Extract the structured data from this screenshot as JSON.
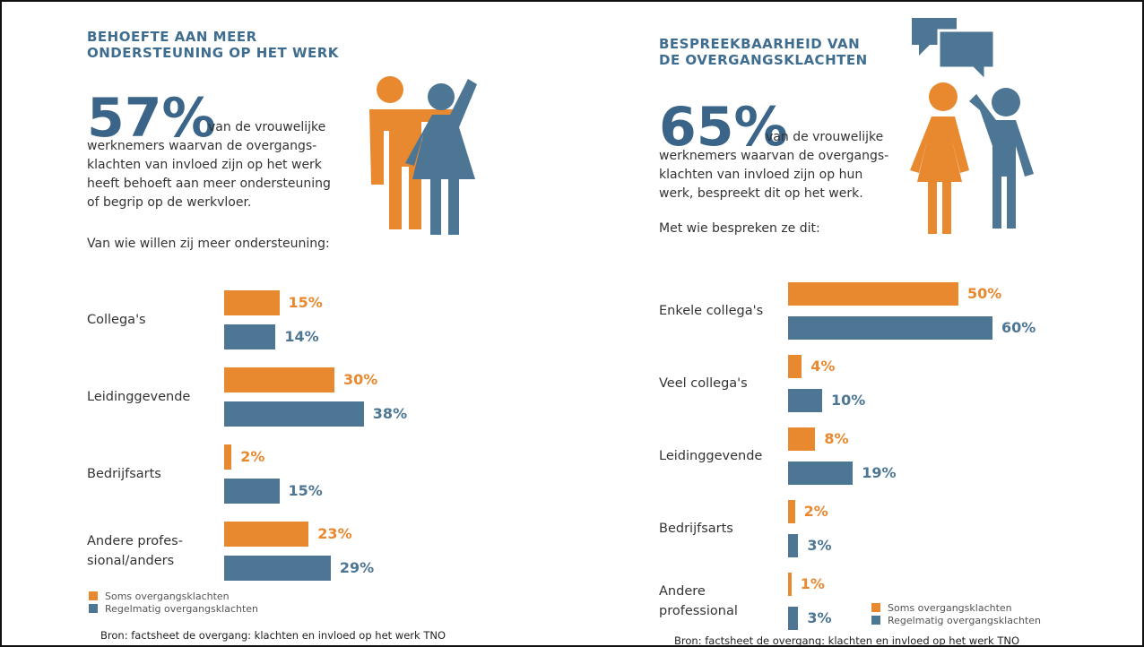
{
  "chart_data": [
    {
      "type": "bar",
      "orientation": "horizontal",
      "title": "BEHOEFTE AAN MEER\nONDERSTEUNING OP HET WERK",
      "headline": "57%",
      "description": "van de vrouwelijke\nwerknemers waarvan de overgangs-\nklachten van invloed zijn op het werk\nheeft behoeft aan meer ondersteuning\nof begrip op de werkvloer.",
      "question": "Van wie willen zij meer ondersteuning:",
      "categories": [
        "Collega's",
        "Leidinggevende",
        "Bedrijfsarts",
        "Andere profes-\nsional/anders"
      ],
      "series": [
        {
          "name": "Soms overgangsklachten",
          "color": "#e8892f",
          "values": [
            15,
            30,
            2,
            23
          ],
          "value_labels": [
            "15%",
            "30%",
            "2%",
            "23%"
          ]
        },
        {
          "name": "Regelmatig overgangsklachten",
          "color": "#4d7694",
          "values": [
            14,
            38,
            15,
            29
          ],
          "value_labels": [
            "14%",
            "38%",
            "15%",
            "29%"
          ]
        }
      ],
      "source": "Bron: factsheet de overgang: klachten en invloed op het werk TNO"
    },
    {
      "type": "bar",
      "orientation": "horizontal",
      "title": "BESPREEKBAARHEID VAN\nDE OVERGANGSKLACHTEN",
      "headline": "65%",
      "description": "van de vrouwelijke\nwerknemers waarvan de overgangs-\nklachten van invloed zijn op hun\nwerk, bespreekt dit op het werk.",
      "question": "Met wie bespreken ze dit:",
      "categories": [
        "Enkele collega's",
        "Veel collega's",
        "Leidinggevende",
        "Bedrijfsarts",
        "Andere\nprofessional"
      ],
      "series": [
        {
          "name": "Soms overgangsklachten",
          "color": "#e8892f",
          "values": [
            50,
            4,
            8,
            2,
            1
          ],
          "value_labels": [
            "50%",
            "4%",
            "8%",
            "2%",
            "1%"
          ]
        },
        {
          "name": "Regelmatig overgangsklachten",
          "color": "#4d7694",
          "values": [
            60,
            10,
            19,
            3,
            3
          ],
          "value_labels": [
            "60%",
            "10%",
            "19%",
            "3%",
            "3%"
          ]
        }
      ],
      "source": "Bron: factsheet de overgang: klachten en invloed op het werk TNO"
    }
  ]
}
